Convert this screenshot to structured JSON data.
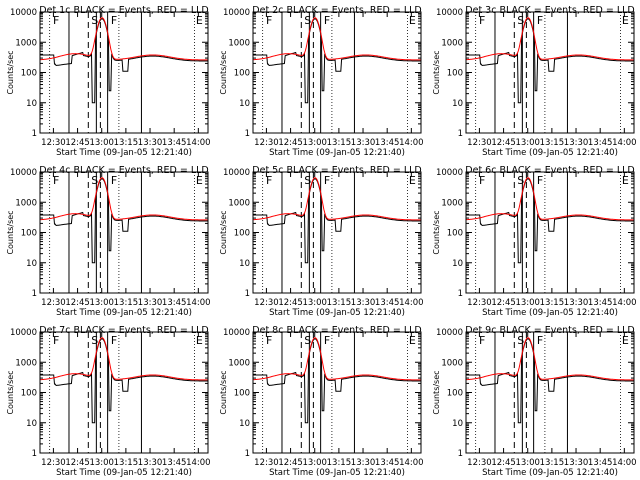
{
  "chart_data": [
    {
      "type": "line",
      "title": "Det 1c BLACK = Events, RED = LLD",
      "xlabel": "Start Time (09-Jan-05 12:21:40)",
      "ylabel": "Counts/sec",
      "y_scale": "log",
      "ylim": [
        1,
        10000
      ],
      "y_tick_labels": [
        "1",
        "10",
        "100",
        "1000",
        "10000"
      ],
      "x_tick_labels": [
        "12:30",
        "12:45",
        "13:00",
        "13:15",
        "13:30",
        "13:45",
        "14:00"
      ],
      "interval_labels": [
        "F",
        "S",
        "F",
        "E"
      ],
      "series": [
        {
          "name": "Events",
          "color": "#000000"
        },
        {
          "name": "LLD",
          "color": "#ff0000"
        }
      ]
    },
    {
      "type": "line",
      "title": "Det 2c BLACK = Events, RED = LLD",
      "xlabel": "Start Time (09-Jan-05 12:21:40)",
      "ylabel": "Counts/sec",
      "y_scale": "log",
      "ylim": [
        1,
        10000
      ],
      "y_tick_labels": [
        "1",
        "10",
        "100",
        "1000",
        "10000"
      ],
      "x_tick_labels": [
        "12:30",
        "12:45",
        "13:00",
        "13:15",
        "13:30",
        "13:45",
        "14:00"
      ],
      "interval_labels": [
        "F",
        "S",
        "F",
        "E"
      ],
      "series": [
        {
          "name": "Events",
          "color": "#000000"
        },
        {
          "name": "LLD",
          "color": "#ff0000"
        }
      ]
    },
    {
      "type": "line",
      "title": "Det 3c BLACK = Events, RED = LLD",
      "xlabel": "Start Time (09-Jan-05 12:21:40)",
      "ylabel": "Counts/sec",
      "y_scale": "log",
      "ylim": [
        1,
        10000
      ],
      "y_tick_labels": [
        "1",
        "10",
        "100",
        "1000",
        "10000"
      ],
      "x_tick_labels": [
        "12:30",
        "12:45",
        "13:00",
        "13:15",
        "13:30",
        "13:45",
        "14:00"
      ],
      "interval_labels": [
        "F",
        "S",
        "F",
        "E"
      ],
      "series": [
        {
          "name": "Events",
          "color": "#000000"
        },
        {
          "name": "LLD",
          "color": "#ff0000"
        }
      ]
    },
    {
      "type": "line",
      "title": "Det 4c BLACK = Events, RED = LLD",
      "xlabel": "Start Time (09-Jan-05 12:21:40)",
      "ylabel": "Counts/sec",
      "y_scale": "log",
      "ylim": [
        1,
        10000
      ],
      "y_tick_labels": [
        "1",
        "10",
        "100",
        "1000",
        "10000"
      ],
      "x_tick_labels": [
        "12:30",
        "12:45",
        "13:00",
        "13:15",
        "13:30",
        "13:45",
        "14:00"
      ],
      "interval_labels": [
        "F",
        "S",
        "F",
        "E"
      ],
      "series": [
        {
          "name": "Events",
          "color": "#000000"
        },
        {
          "name": "LLD",
          "color": "#ff0000"
        }
      ]
    },
    {
      "type": "line",
      "title": "Det 5c BLACK = Events, RED = LLD",
      "xlabel": "Start Time (09-Jan-05 12:21:40)",
      "ylabel": "Counts/sec",
      "y_scale": "log",
      "ylim": [
        1,
        10000
      ],
      "y_tick_labels": [
        "1",
        "10",
        "100",
        "1000",
        "10000"
      ],
      "x_tick_labels": [
        "12:30",
        "12:45",
        "13:00",
        "13:15",
        "13:30",
        "13:45",
        "14:00"
      ],
      "interval_labels": [
        "F",
        "S",
        "F",
        "E"
      ],
      "series": [
        {
          "name": "Events",
          "color": "#000000"
        },
        {
          "name": "LLD",
          "color": "#ff0000"
        }
      ]
    },
    {
      "type": "line",
      "title": "Det 6c BLACK = Events, RED = LLD",
      "xlabel": "Start Time (09-Jan-05 12:21:40)",
      "ylabel": "Counts/sec",
      "y_scale": "log",
      "ylim": [
        1,
        10000
      ],
      "y_tick_labels": [
        "1",
        "10",
        "100",
        "1000",
        "10000"
      ],
      "x_tick_labels": [
        "12:30",
        "12:45",
        "13:00",
        "13:15",
        "13:30",
        "13:45",
        "14:00"
      ],
      "interval_labels": [
        "F",
        "S",
        "F",
        "E"
      ],
      "series": [
        {
          "name": "Events",
          "color": "#000000"
        },
        {
          "name": "LLD",
          "color": "#ff0000"
        }
      ]
    },
    {
      "type": "line",
      "title": "Det 7c BLACK = Events, RED = LLD",
      "xlabel": "Start Time (09-Jan-05 12:21:40)",
      "ylabel": "Counts/sec",
      "y_scale": "log",
      "ylim": [
        1,
        10000
      ],
      "y_tick_labels": [
        "1",
        "10",
        "100",
        "1000",
        "10000"
      ],
      "x_tick_labels": [
        "12:30",
        "12:45",
        "13:00",
        "13:15",
        "13:30",
        "13:45",
        "14:00"
      ],
      "interval_labels": [
        "F",
        "S",
        "F",
        "E"
      ],
      "series": [
        {
          "name": "Events",
          "color": "#000000"
        },
        {
          "name": "LLD",
          "color": "#ff0000"
        }
      ]
    },
    {
      "type": "line",
      "title": "Det 8c BLACK = Events, RED = LLD",
      "xlabel": "Start Time (09-Jan-05 12:21:40)",
      "ylabel": "Counts/sec",
      "y_scale": "log",
      "ylim": [
        1,
        10000
      ],
      "y_tick_labels": [
        "1",
        "10",
        "100",
        "1000",
        "10000"
      ],
      "x_tick_labels": [
        "12:30",
        "12:45",
        "13:00",
        "13:15",
        "13:30",
        "13:45",
        "14:00"
      ],
      "interval_labels": [
        "F",
        "S",
        "F",
        "E"
      ],
      "series": [
        {
          "name": "Events",
          "color": "#000000"
        },
        {
          "name": "LLD",
          "color": "#ff0000"
        }
      ]
    },
    {
      "type": "line",
      "title": "Det 9c BLACK = Events, RED = LLD",
      "xlabel": "Start Time (09-Jan-05 12:21:40)",
      "ylabel": "Counts/sec",
      "y_scale": "log",
      "ylim": [
        1,
        10000
      ],
      "y_tick_labels": [
        "1",
        "10",
        "100",
        "1000",
        "10000"
      ],
      "x_tick_labels": [
        "12:30",
        "12:45",
        "13:00",
        "13:15",
        "13:30",
        "13:45",
        "14:00"
      ],
      "interval_labels": [
        "F",
        "S",
        "F",
        "E"
      ],
      "series": [
        {
          "name": "Events",
          "color": "#000000"
        },
        {
          "name": "LLD",
          "color": "#ff0000"
        }
      ]
    }
  ]
}
